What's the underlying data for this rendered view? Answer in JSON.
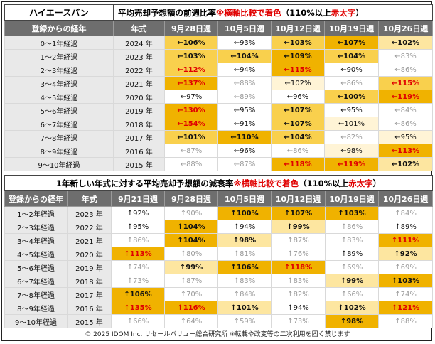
{
  "colors": {
    "v_strong": "#f0b200",
    "v_high": "#f9d04d",
    "v_mid": "#fde6a0",
    "v_light": "#fff4d6",
    "v_none": "#ffffff",
    "v_grey_text": "#9a9a9a",
    "v_red_text": "#e00000",
    "header_bg": "#6e6e6e",
    "label_bg": "#e9e9e9"
  },
  "chart_data": [
    {
      "type": "table",
      "title_left": "ハイエースバン",
      "title_main": "平均売却予想額の前週比率",
      "title_note": "※横軸比較で着色",
      "title_paren": "（110%以上",
      "title_red": "赤太字",
      "title_close": "）",
      "columns": [
        "登録からの経年",
        "年式",
        "9月28日週",
        "10月5日週",
        "10月12日週",
        "10月19日週",
        "10月26日週"
      ],
      "rows": [
        {
          "label": "0～1年経過",
          "year": "2024 年",
          "cells": [
            {
              "text": "←106%",
              "level": 3
            },
            {
              "text": "←93%",
              "level": 0
            },
            {
              "text": "←103%",
              "level": 3
            },
            {
              "text": "←107%",
              "level": 4
            },
            {
              "text": "←102%",
              "level": 2
            }
          ]
        },
        {
          "label": "1～2年経過",
          "year": "2023 年",
          "cells": [
            {
              "text": "←103%",
              "level": 3
            },
            {
              "text": "←104%",
              "level": 3
            },
            {
              "text": "←109%",
              "level": 4
            },
            {
              "text": "←104%",
              "level": 3
            },
            {
              "text": "←83%",
              "level": -1
            }
          ]
        },
        {
          "label": "2～3年経過",
          "year": "2022 年",
          "cells": [
            {
              "text": "←112%",
              "level": 3,
              "red": true
            },
            {
              "text": "←94%",
              "level": 0
            },
            {
              "text": "←115%",
              "level": 4,
              "red": true
            },
            {
              "text": "←90%",
              "level": 0
            },
            {
              "text": "←86%",
              "level": -1
            }
          ]
        },
        {
          "label": "3～4年経過",
          "year": "2021 年",
          "cells": [
            {
              "text": "←137%",
              "level": 4,
              "red": true
            },
            {
              "text": "←88%",
              "level": -1
            },
            {
              "text": "←102%",
              "level": 1
            },
            {
              "text": "←86%",
              "level": -1
            },
            {
              "text": "←115%",
              "level": 3,
              "red": true
            }
          ]
        },
        {
          "label": "4～5年経過",
          "year": "2020 年",
          "cells": [
            {
              "text": "←97%",
              "level": 0
            },
            {
              "text": "←89%",
              "level": -1
            },
            {
              "text": "←96%",
              "level": 0
            },
            {
              "text": "←100%",
              "level": 3
            },
            {
              "text": "←119%",
              "level": 4,
              "red": true
            }
          ]
        },
        {
          "label": "5～6年経過",
          "year": "2019 年",
          "cells": [
            {
              "text": "←130%",
              "level": 4,
              "red": true
            },
            {
              "text": "←95%",
              "level": 0
            },
            {
              "text": "←107%",
              "level": 3
            },
            {
              "text": "←95%",
              "level": 0
            },
            {
              "text": "←84%",
              "level": -1
            }
          ]
        },
        {
          "label": "6～7年経過",
          "year": "2018 年",
          "cells": [
            {
              "text": "←154%",
              "level": 4,
              "red": true
            },
            {
              "text": "←91%",
              "level": 0
            },
            {
              "text": "←107%",
              "level": 3
            },
            {
              "text": "←101%",
              "level": 1
            },
            {
              "text": "←86%",
              "level": -1
            }
          ]
        },
        {
          "label": "7～8年経過",
          "year": "2017 年",
          "cells": [
            {
              "text": "←101%",
              "level": 3
            },
            {
              "text": "←110%",
              "level": 4
            },
            {
              "text": "←104%",
              "level": 3
            },
            {
              "text": "←82%",
              "level": -1
            },
            {
              "text": "←95%",
              "level": 1
            }
          ]
        },
        {
          "label": "8～9年経過",
          "year": "2016 年",
          "cells": [
            {
              "text": "←87%",
              "level": -1
            },
            {
              "text": "←96%",
              "level": 0
            },
            {
              "text": "←86%",
              "level": -1
            },
            {
              "text": "←98%",
              "level": 1
            },
            {
              "text": "←113%",
              "level": 4,
              "red": true
            }
          ]
        },
        {
          "label": "9～10年経過",
          "year": "2015 年",
          "cells": [
            {
              "text": "←88%",
              "level": -1
            },
            {
              "text": "←87%",
              "level": -1
            },
            {
              "text": "←118%",
              "level": 4,
              "red": true
            },
            {
              "text": "←119%",
              "level": 4,
              "red": true
            },
            {
              "text": "←102%",
              "level": 2
            }
          ]
        }
      ]
    },
    {
      "type": "table",
      "title_main": "1年新しい年式に対する平均売却予想額の減衰率",
      "title_note": "※横軸比較で着色",
      "title_paren": "（110%以上",
      "title_red": "赤太字",
      "title_close": "）",
      "columns": [
        "登録からの経年",
        "年式",
        "9月21日週",
        "9月28日週",
        "10月5日週",
        "10月12日週",
        "10月19日週",
        "10月26日週"
      ],
      "rows": [
        {
          "label": "1～2年経過",
          "year": "2023 年",
          "cells": [
            {
              "text": "↑92%",
              "level": 0
            },
            {
              "text": "↑90%",
              "level": -1
            },
            {
              "text": "↑100%",
              "level": 4
            },
            {
              "text": "↑107%",
              "level": 4
            },
            {
              "text": "↑103%",
              "level": 4
            },
            {
              "text": "↑84%",
              "level": -1
            }
          ]
        },
        {
          "label": "2～3年経過",
          "year": "2022 年",
          "cells": [
            {
              "text": "↑95%",
              "level": 0
            },
            {
              "text": "↑104%",
              "level": 4
            },
            {
              "text": "↑94%",
              "level": 0
            },
            {
              "text": "↑99%",
              "level": 2
            },
            {
              "text": "↑86%",
              "level": -1
            },
            {
              "text": "↑89%",
              "level": 0
            }
          ]
        },
        {
          "label": "3～4年経過",
          "year": "2021 年",
          "cells": [
            {
              "text": "↑86%",
              "level": -1
            },
            {
              "text": "↑104%",
              "level": 4
            },
            {
              "text": "↑98%",
              "level": 2
            },
            {
              "text": "↑87%",
              "level": -1
            },
            {
              "text": "↑83%",
              "level": -1
            },
            {
              "text": "↑111%",
              "level": 4,
              "red": true
            }
          ]
        },
        {
          "label": "4～5年経過",
          "year": "2020 年",
          "cells": [
            {
              "text": "↑113%",
              "level": 4,
              "red": true
            },
            {
              "text": "↑80%",
              "level": -1
            },
            {
              "text": "↑81%",
              "level": -1
            },
            {
              "text": "↑76%",
              "level": -1
            },
            {
              "text": "↑89%",
              "level": 0
            },
            {
              "text": "↑92%",
              "level": 2
            }
          ]
        },
        {
          "label": "5～6年経過",
          "year": "2019 年",
          "cells": [
            {
              "text": "↑74%",
              "level": -1
            },
            {
              "text": "↑99%",
              "level": 2
            },
            {
              "text": "↑106%",
              "level": 4
            },
            {
              "text": "↑118%",
              "level": 4,
              "red": true
            },
            {
              "text": "↑69%",
              "level": -1
            },
            {
              "text": "↑69%",
              "level": -1
            }
          ]
        },
        {
          "label": "6～7年経過",
          "year": "2018 年",
          "cells": [
            {
              "text": "↑73%",
              "level": -1
            },
            {
              "text": "↑87%",
              "level": -1
            },
            {
              "text": "↑83%",
              "level": -1
            },
            {
              "text": "↑83%",
              "level": -1
            },
            {
              "text": "↑99%",
              "level": 2
            },
            {
              "text": "↑103%",
              "level": 4
            }
          ]
        },
        {
          "label": "7～8年経過",
          "year": "2017 年",
          "cells": [
            {
              "text": "↑106%",
              "level": 4
            },
            {
              "text": "↑70%",
              "level": -1
            },
            {
              "text": "↑84%",
              "level": -1
            },
            {
              "text": "↑82%",
              "level": -1
            },
            {
              "text": "↑66%",
              "level": -1
            },
            {
              "text": "↑74%",
              "level": -1
            }
          ]
        },
        {
          "label": "8～9年経過",
          "year": "2016 年",
          "cells": [
            {
              "text": "↑135%",
              "level": 4,
              "red": true
            },
            {
              "text": "↑116%",
              "level": 4,
              "red": true
            },
            {
              "text": "↑101%",
              "level": 2
            },
            {
              "text": "↑94%",
              "level": 0
            },
            {
              "text": "↑102%",
              "level": 2
            },
            {
              "text": "↑121%",
              "level": 4,
              "red": true
            }
          ]
        },
        {
          "label": "9～10年経過",
          "year": "2015 年",
          "cells": [
            {
              "text": "↑66%",
              "level": -1
            },
            {
              "text": "↑64%",
              "level": -1
            },
            {
              "text": "↑59%",
              "level": -1
            },
            {
              "text": "↑73%",
              "level": -1
            },
            {
              "text": "↑98%",
              "level": 4
            },
            {
              "text": "↑88%",
              "level": -1
            }
          ]
        }
      ]
    }
  ],
  "footer": "© 2025 IDOM Inc. リセールバリュー総合研究所 ※転載や改変等の二次利用を固く禁じます"
}
